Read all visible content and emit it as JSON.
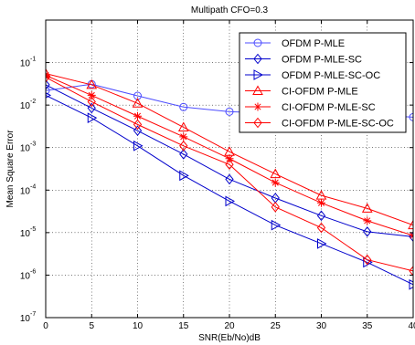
{
  "chart_data": {
    "type": "line",
    "title": "Multipath CFO=0.3",
    "xlabel": "SNR(Eb/No)dB",
    "ylabel": "Mean Square Error",
    "x": [
      0,
      5,
      10,
      15,
      20,
      25,
      30,
      35,
      40
    ],
    "xlim": [
      0,
      40
    ],
    "xticks": [
      "0",
      "5",
      "10",
      "15",
      "20",
      "25",
      "30",
      "35",
      "40"
    ],
    "ylim": [
      1e-07,
      1
    ],
    "yscale": "log",
    "yticks": [
      {
        "base": "10",
        "exp": "-7",
        "value": 1e-07
      },
      {
        "base": "10",
        "exp": "-6",
        "value": 1e-06
      },
      {
        "base": "10",
        "exp": "-5",
        "value": 1e-05
      },
      {
        "base": "10",
        "exp": "-4",
        "value": 0.0001
      },
      {
        "base": "10",
        "exp": "-3",
        "value": 0.001
      },
      {
        "base": "10",
        "exp": "-2",
        "value": 0.01
      },
      {
        "base": "10",
        "exp": "-1",
        "value": 0.1
      }
    ],
    "grid": true,
    "legend_position": "top-right",
    "series": [
      {
        "name": "OFDM P-MLE",
        "color": "#4d4dff",
        "marker": "circle",
        "values": [
          0.022,
          0.031,
          0.0165,
          0.009,
          0.007,
          0.0065,
          0.0062,
          0.006,
          0.0052
        ]
      },
      {
        "name": "OFDM P-MLE-SC",
        "color": "#0000cc",
        "marker": "diamond",
        "values": [
          0.03,
          0.0085,
          0.0025,
          0.0007,
          0.00018,
          6.5e-05,
          2.5e-05,
          1.05e-05,
          8e-06
        ]
      },
      {
        "name": "OFDM P-MLE-SC-OC",
        "color": "#0000cc",
        "marker": "triangle-right",
        "values": [
          0.017,
          0.005,
          0.0011,
          0.00022,
          5.5e-05,
          1.5e-05,
          5.5e-06,
          2e-06,
          6e-07
        ]
      },
      {
        "name": "CI-OFDM P-MLE",
        "color": "#ff0000",
        "marker": "triangle-up",
        "values": [
          0.055,
          0.03,
          0.011,
          0.003,
          0.0008,
          0.00024,
          7.5e-05,
          3.7e-05,
          1.5e-05
        ]
      },
      {
        "name": "CI-OFDM P-MLE-SC",
        "color": "#ff0000",
        "marker": "star",
        "values": [
          0.05,
          0.017,
          0.0055,
          0.0018,
          0.00055,
          0.00015,
          5e-05,
          1.9e-05,
          8.5e-06
        ]
      },
      {
        "name": "CI-OFDM P-MLE-SC-OC",
        "color": "#ff0000",
        "marker": "diamond",
        "values": [
          0.045,
          0.012,
          0.0035,
          0.0011,
          0.0004,
          4e-05,
          1.3e-05,
          2.3e-06,
          1.25e-06
        ]
      }
    ]
  }
}
